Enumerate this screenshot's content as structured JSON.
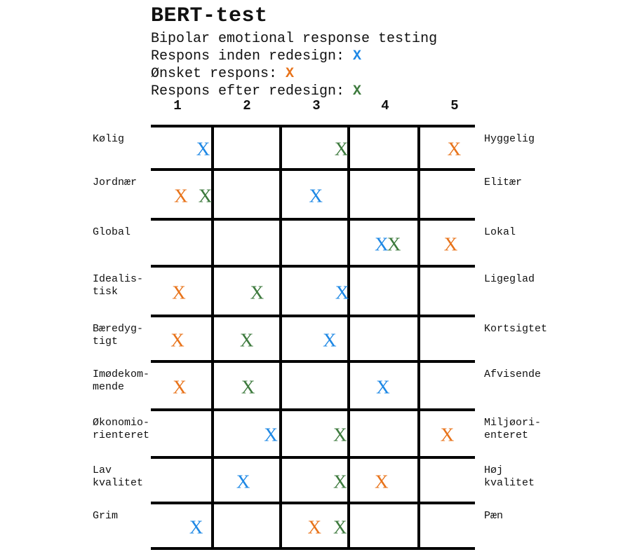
{
  "title": "BERT-test",
  "subtitle": "Bipolar emotional response testing",
  "legend": [
    {
      "label": "Respons inden redesign: ",
      "marker": "X",
      "key": "before"
    },
    {
      "label": "Ønsket respons: ",
      "marker": "X",
      "key": "wanted"
    },
    {
      "label": "Respons efter redesign: ",
      "marker": "X",
      "key": "after"
    }
  ],
  "colors": {
    "before": "#1e88e5",
    "wanted": "#e8731a",
    "after": "#3d7a3d"
  },
  "columns": [
    "1",
    "2",
    "3",
    "4",
    "5"
  ],
  "rows": [
    {
      "left": "Kølig",
      "right": "Hyggelig",
      "before": 1.37,
      "wanted": 5.0,
      "after": 3.37
    },
    {
      "left": "Jordnær",
      "right": "Elitær",
      "before": 3.0,
      "wanted": 1.05,
      "after": 1.4
    },
    {
      "left": "Global",
      "right": "Lokal",
      "before": 3.95,
      "wanted": 4.95,
      "after": 4.13
    },
    {
      "left": "Idealis-\ntisk",
      "right": "Ligeglad",
      "before": 3.38,
      "wanted": 1.02,
      "after": 2.15
    },
    {
      "left": "Bæredyg-\ntigt",
      "right": "Kortsigtet",
      "before": 3.2,
      "wanted": 1.0,
      "after": 2.0
    },
    {
      "left": "Imødekom-\nmende",
      "right": "Afvisende",
      "before": 3.97,
      "wanted": 1.03,
      "after": 2.02
    },
    {
      "left": "Økonomio-\nrienteret",
      "right": "Miljøori-\nenteret",
      "before": 2.35,
      "wanted": 4.9,
      "after": 3.35
    },
    {
      "left": "Lav\nkvalitet",
      "right": "Høj\nkvalitet",
      "before": 1.95,
      "wanted": 3.95,
      "after": 3.35
    },
    {
      "left": "Grim",
      "right": "Pæn",
      "before": 1.27,
      "wanted": 2.98,
      "after": 3.35
    }
  ]
}
